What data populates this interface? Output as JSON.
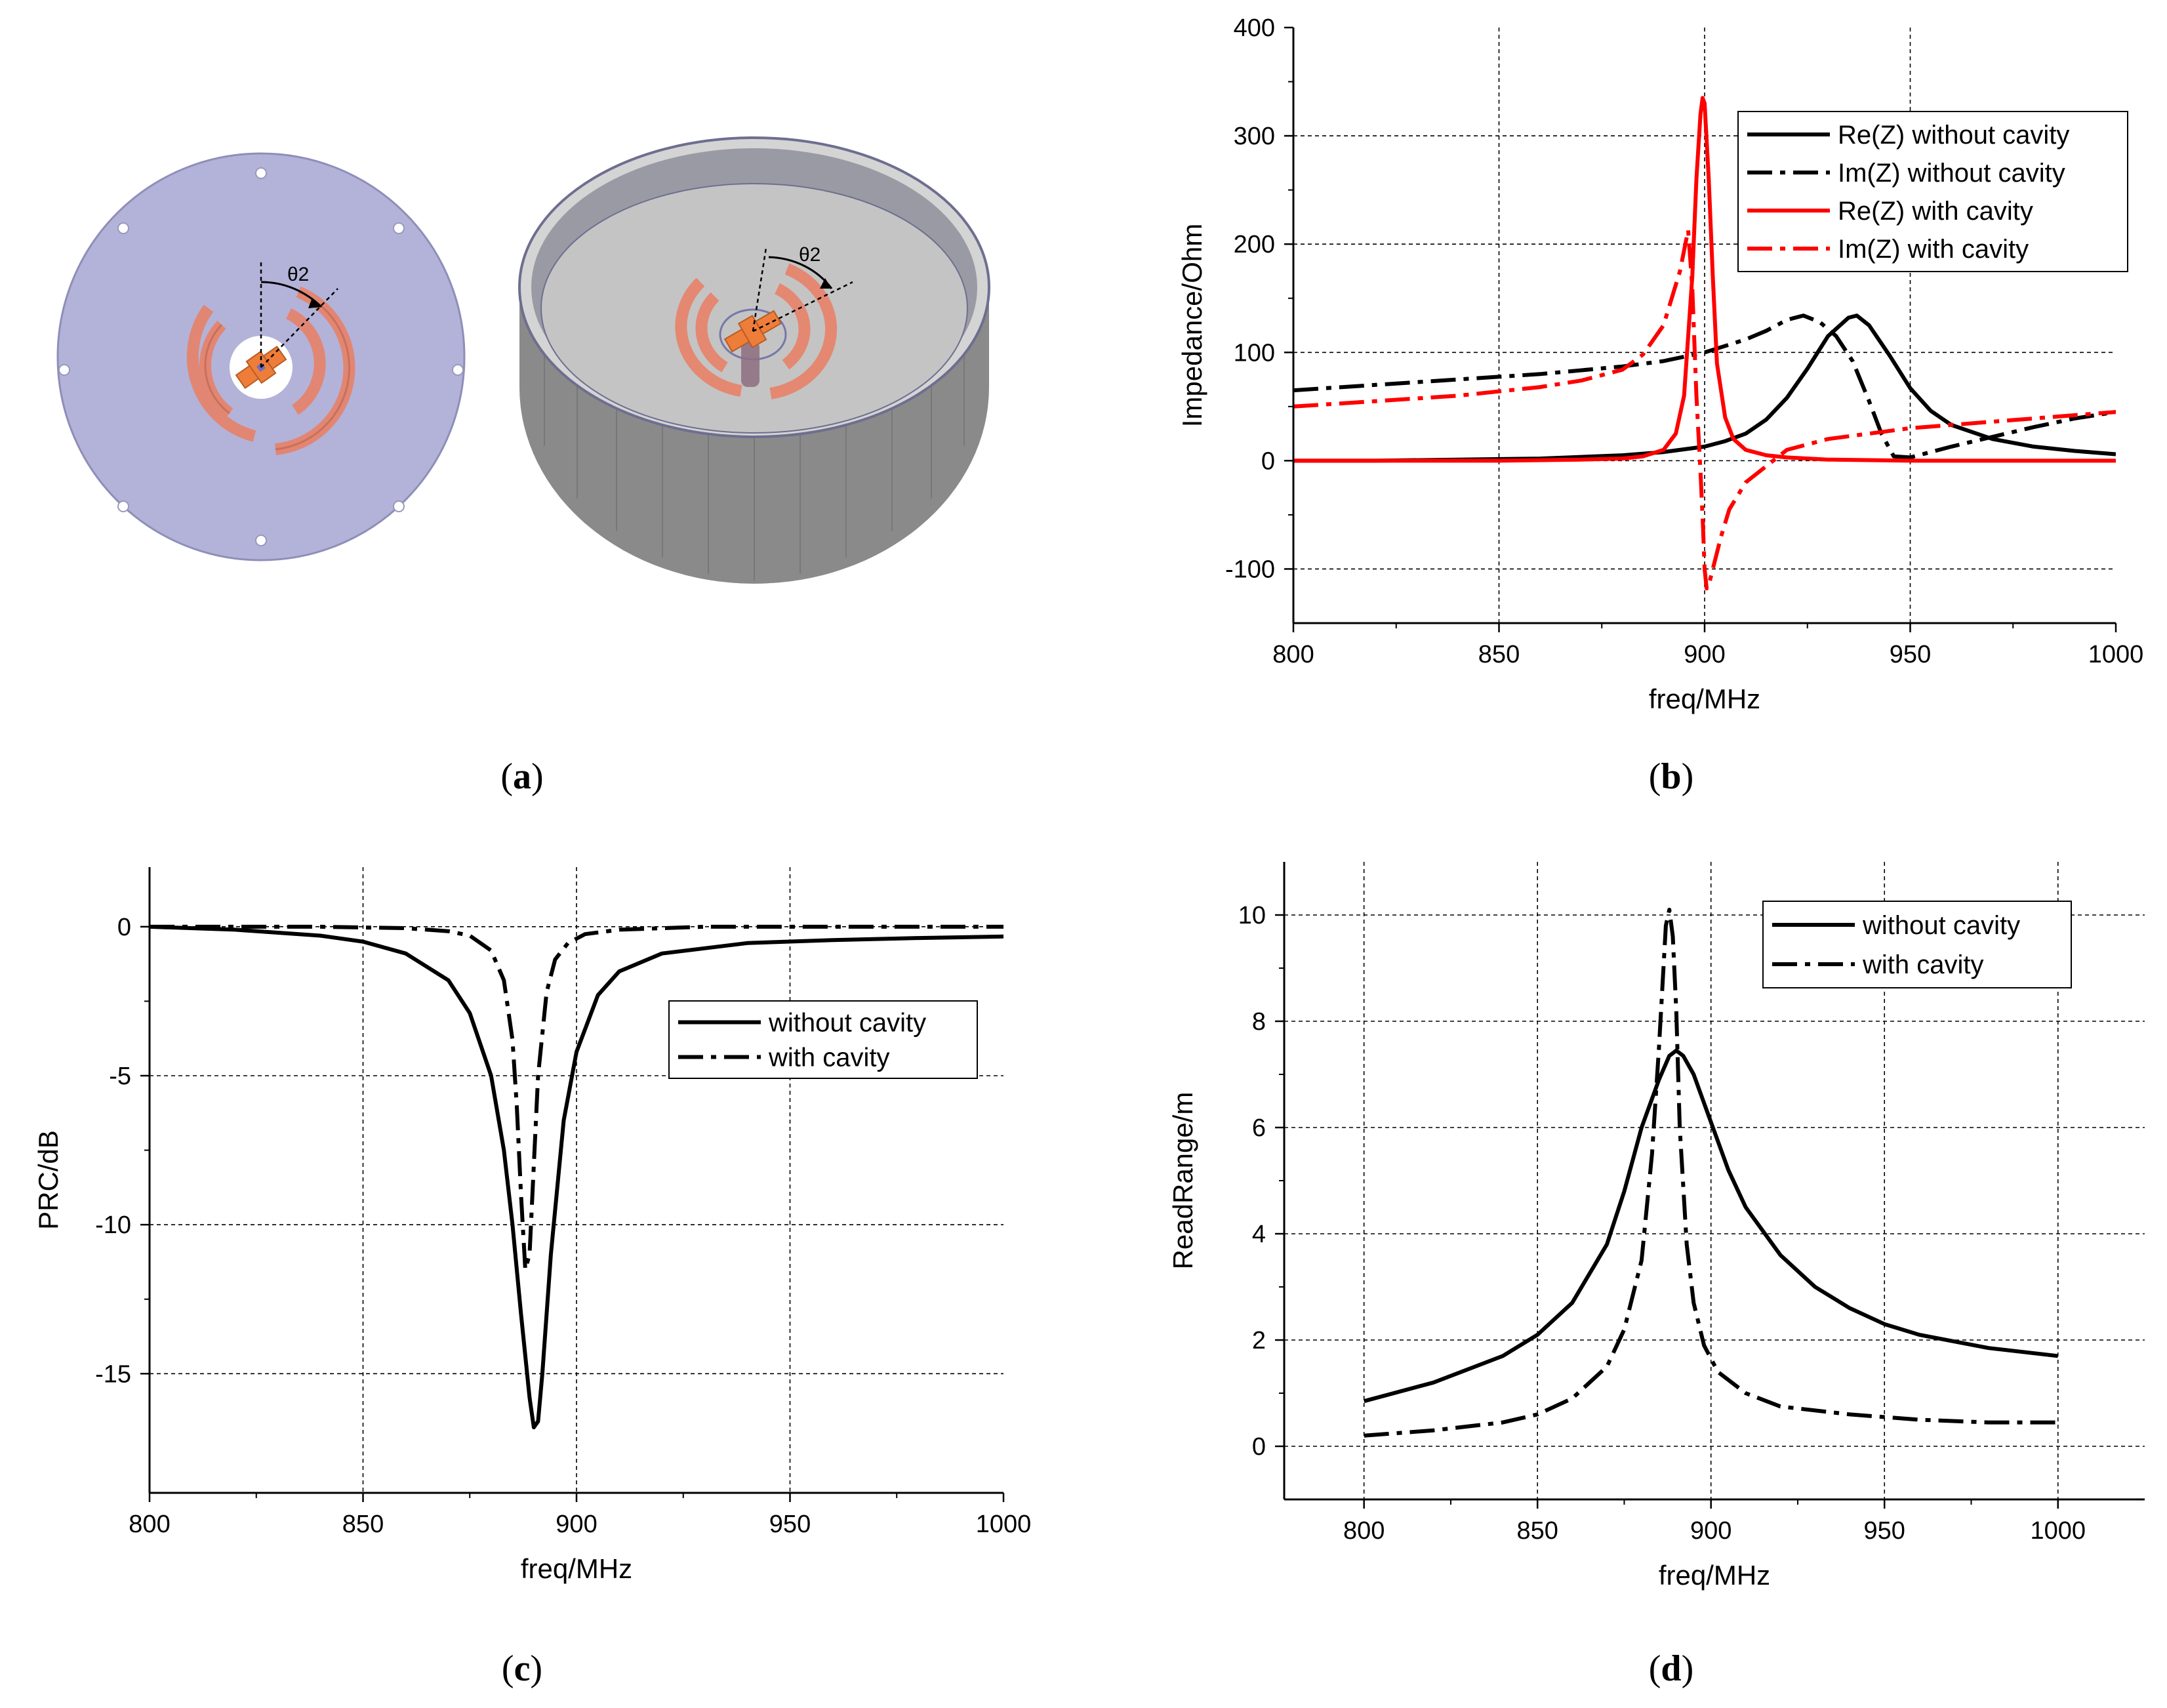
{
  "figure": {
    "panels": [
      {
        "id": "a",
        "label": "(a)",
        "label_letter": "a"
      },
      {
        "id": "b",
        "label": "(b)",
        "label_letter": "b"
      },
      {
        "id": "c",
        "label": "(c)",
        "label_letter": "c"
      },
      {
        "id": "d",
        "label": "(d)",
        "label_letter": "d"
      }
    ],
    "illustration": {
      "angle_label_left": "θ2",
      "angle_label_right": "θ2"
    },
    "colors": {
      "black": "#000000",
      "red": "#ff0000",
      "plate": "#b3b3d9",
      "tag": "#e8826a",
      "chip": "#ef7d3a",
      "cavity_floor": "#c4c4c4",
      "cavity_wall": "#8c8c8c",
      "grid": "#000000"
    }
  },
  "chart_data": [
    {
      "id": "b",
      "type": "line",
      "title": "",
      "xlabel": "freq/MHz",
      "ylabel": "Impedance/Ohm",
      "xlim": [
        800,
        1000
      ],
      "ylim": [
        -150,
        400
      ],
      "xticks": [
        800,
        850,
        900,
        950,
        1000
      ],
      "yticks": [
        -100,
        0,
        100,
        200,
        300,
        400
      ],
      "legend_position": "top-right",
      "series": [
        {
          "name": "Re(Z) without cavity",
          "color": "#000000",
          "style": "solid",
          "x": [
            800,
            820,
            840,
            860,
            880,
            890,
            900,
            905,
            910,
            915,
            920,
            925,
            930,
            935,
            937,
            940,
            945,
            950,
            955,
            960,
            970,
            980,
            990,
            1000
          ],
          "y": [
            0,
            0,
            1,
            2,
            5,
            8,
            13,
            18,
            25,
            38,
            58,
            85,
            115,
            132,
            134,
            125,
            97,
            67,
            46,
            33,
            20,
            13,
            9,
            6
          ]
        },
        {
          "name": "Im(Z) without cavity",
          "color": "#000000",
          "style": "dashdot",
          "x": [
            800,
            820,
            840,
            860,
            880,
            890,
            900,
            910,
            915,
            920,
            924,
            928,
            932,
            936,
            940,
            943,
            946,
            950,
            955,
            960,
            970,
            980,
            990,
            1000
          ],
          "y": [
            65,
            70,
            75,
            80,
            87,
            92,
            100,
            112,
            120,
            130,
            134,
            128,
            115,
            92,
            55,
            25,
            4,
            3,
            8,
            13,
            22,
            31,
            39,
            45
          ]
        },
        {
          "name": "Re(Z) with cavity",
          "color": "#ff0000",
          "style": "solid",
          "x": [
            800,
            850,
            870,
            880,
            885,
            890,
            893,
            895,
            897,
            898,
            899,
            899.5,
            900,
            901,
            902,
            903,
            905,
            907,
            910,
            915,
            920,
            930,
            950,
            1000
          ],
          "y": [
            0,
            0,
            1,
            2,
            4,
            10,
            25,
            60,
            170,
            260,
            320,
            335,
            330,
            260,
            170,
            90,
            40,
            20,
            10,
            5,
            3,
            1,
            0,
            0
          ]
        },
        {
          "name": "Im(Z) with cavity",
          "color": "#ff0000",
          "style": "dashdot",
          "x": [
            800,
            820,
            840,
            860,
            870,
            880,
            885,
            890,
            894,
            896,
            897,
            898,
            899,
            899.6,
            900,
            900.5,
            901,
            902,
            904,
            906,
            910,
            915,
            920,
            930,
            940,
            950,
            960,
            970,
            980,
            990,
            1000
          ],
          "y": [
            50,
            55,
            60,
            68,
            74,
            84,
            98,
            125,
            175,
            213,
            160,
            60,
            -10,
            -60,
            -100,
            -118,
            -115,
            -100,
            -70,
            -45,
            -20,
            -5,
            10,
            20,
            25,
            30,
            33,
            36,
            39,
            42,
            45
          ]
        }
      ]
    },
    {
      "id": "c",
      "type": "line",
      "title": "",
      "xlabel": "freq/MHz",
      "ylabel": "PRC/dB",
      "xlim": [
        800,
        1000
      ],
      "ylim": [
        -19,
        2
      ],
      "xticks": [
        800,
        850,
        900,
        950,
        1000
      ],
      "yticks": [
        -15,
        -10,
        -5,
        0
      ],
      "legend_position": "center-right",
      "series": [
        {
          "name": "without cavity",
          "color": "#000000",
          "style": "solid",
          "x": [
            800,
            820,
            840,
            850,
            860,
            870,
            875,
            880,
            883,
            885,
            887,
            889,
            890,
            891,
            892,
            894,
            897,
            900,
            905,
            910,
            920,
            940,
            960,
            980,
            1000
          ],
          "y": [
            0,
            -0.1,
            -0.3,
            -0.5,
            -0.9,
            -1.8,
            -2.9,
            -5.0,
            -7.5,
            -10.0,
            -13.0,
            -15.8,
            -16.8,
            -16.6,
            -15.0,
            -11.0,
            -6.5,
            -4.2,
            -2.3,
            -1.5,
            -0.9,
            -0.55,
            -0.45,
            -0.38,
            -0.33
          ]
        },
        {
          "name": "with cavity",
          "color": "#000000",
          "style": "dashdot",
          "x": [
            800,
            840,
            860,
            870,
            875,
            880,
            883,
            885,
            886,
            887,
            888,
            889,
            890,
            891,
            893,
            895,
            898,
            902,
            910,
            930,
            1000
          ],
          "y": [
            0,
            0,
            -0.05,
            -0.15,
            -0.3,
            -0.8,
            -1.8,
            -3.8,
            -6.0,
            -9.0,
            -11.5,
            -11.0,
            -8.0,
            -5.0,
            -2.2,
            -1.1,
            -0.55,
            -0.25,
            -0.1,
            0,
            0
          ]
        }
      ]
    },
    {
      "id": "d",
      "type": "line",
      "title": "",
      "xlabel": "freq/MHz",
      "ylabel": "ReadRange/m",
      "xlim": [
        777,
        1025
      ],
      "ylim": [
        -1,
        11
      ],
      "xticks": [
        800,
        850,
        900,
        950,
        1000
      ],
      "yticks": [
        0,
        2,
        4,
        6,
        8,
        10
      ],
      "legend_position": "top-right",
      "series": [
        {
          "name": "without cavity",
          "color": "#000000",
          "style": "solid",
          "x": [
            800,
            820,
            840,
            850,
            860,
            870,
            875,
            880,
            885,
            888,
            890,
            892,
            895,
            900,
            905,
            910,
            920,
            930,
            940,
            950,
            960,
            980,
            1000
          ],
          "y": [
            0.85,
            1.2,
            1.7,
            2.1,
            2.7,
            3.8,
            4.8,
            6.0,
            6.9,
            7.35,
            7.45,
            7.35,
            7.0,
            6.1,
            5.2,
            4.5,
            3.6,
            3.0,
            2.6,
            2.3,
            2.1,
            1.85,
            1.7
          ]
        },
        {
          "name": "with cavity",
          "color": "#000000",
          "style": "dashdot",
          "x": [
            800,
            820,
            840,
            850,
            860,
            870,
            875,
            880,
            883,
            885,
            887,
            888,
            889,
            890,
            891,
            893,
            895,
            898,
            902,
            910,
            920,
            940,
            960,
            980,
            1000
          ],
          "y": [
            0.2,
            0.3,
            0.45,
            0.6,
            0.9,
            1.5,
            2.2,
            3.5,
            5.5,
            7.5,
            9.8,
            10.1,
            9.6,
            8.2,
            6.0,
            3.8,
            2.7,
            1.9,
            1.4,
            1.0,
            0.75,
            0.6,
            0.5,
            0.45,
            0.45
          ]
        }
      ]
    }
  ]
}
